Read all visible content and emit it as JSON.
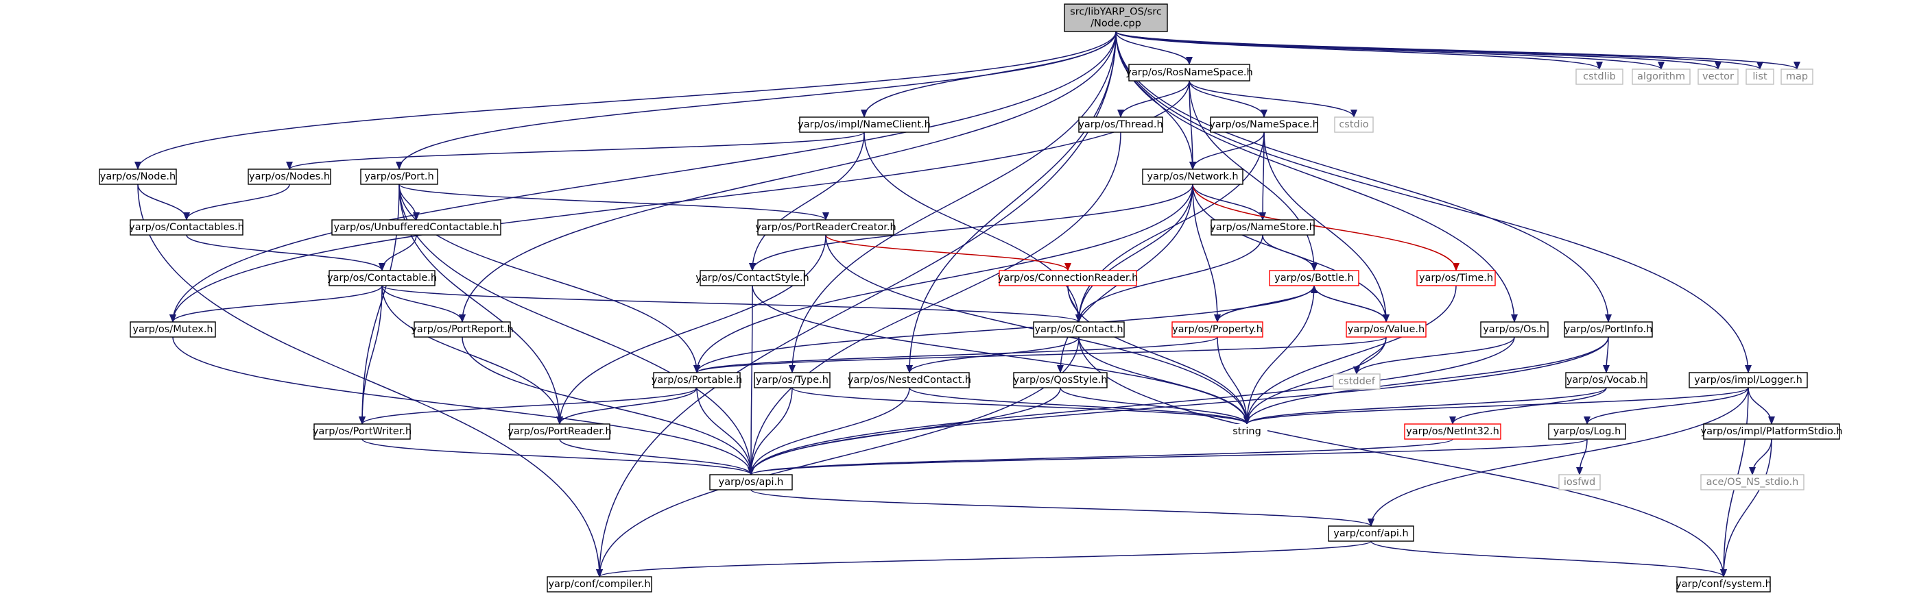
{
  "colors": {
    "edge": "#191970",
    "edge_red": "#c00000",
    "box_border": "#000000",
    "box_border_red": "#ff0000",
    "box_border_system": "#bfbfbf",
    "root_fill": "#bfbfbf",
    "text": "#000000",
    "text_system": "#808080"
  },
  "nodes": [
    {
      "id": "root",
      "lines": [
        "src/libYARP_OS/src",
        "/Node.cpp"
      ],
      "kind": "root"
    },
    {
      "id": "rosnamespace",
      "lines": [
        "yarp/os/RosNameSpace.h"
      ],
      "kind": "normal"
    },
    {
      "id": "cstdlib",
      "lines": [
        "cstdlib"
      ],
      "kind": "system"
    },
    {
      "id": "algorithm",
      "lines": [
        "algorithm"
      ],
      "kind": "system"
    },
    {
      "id": "vector",
      "lines": [
        "vector"
      ],
      "kind": "system"
    },
    {
      "id": "list",
      "lines": [
        "list"
      ],
      "kind": "system"
    },
    {
      "id": "map",
      "lines": [
        "map"
      ],
      "kind": "system"
    },
    {
      "id": "nameclient",
      "lines": [
        "yarp/os/impl/NameClient.h"
      ],
      "kind": "normal"
    },
    {
      "id": "thread",
      "lines": [
        "yarp/os/Thread.h"
      ],
      "kind": "normal"
    },
    {
      "id": "namespace",
      "lines": [
        "yarp/os/NameSpace.h"
      ],
      "kind": "normal"
    },
    {
      "id": "cstdio",
      "lines": [
        "cstdio"
      ],
      "kind": "system"
    },
    {
      "id": "node",
      "lines": [
        "yarp/os/Node.h"
      ],
      "kind": "normal"
    },
    {
      "id": "nodes",
      "lines": [
        "yarp/os/Nodes.h"
      ],
      "kind": "normal"
    },
    {
      "id": "port",
      "lines": [
        "yarp/os/Port.h"
      ],
      "kind": "normal"
    },
    {
      "id": "network",
      "lines": [
        "yarp/os/Network.h"
      ],
      "kind": "normal"
    },
    {
      "id": "contactables",
      "lines": [
        "yarp/os/Contactables.h"
      ],
      "kind": "normal"
    },
    {
      "id": "unbuffered",
      "lines": [
        "yarp/os/UnbufferedContactable.h"
      ],
      "kind": "normal"
    },
    {
      "id": "portreadercreator",
      "lines": [
        "yarp/os/PortReaderCreator.h"
      ],
      "kind": "normal"
    },
    {
      "id": "namestore",
      "lines": [
        "yarp/os/NameStore.h"
      ],
      "kind": "normal"
    },
    {
      "id": "contactable",
      "lines": [
        "yarp/os/Contactable.h"
      ],
      "kind": "normal"
    },
    {
      "id": "contactstyle",
      "lines": [
        "yarp/os/ContactStyle.h"
      ],
      "kind": "normal"
    },
    {
      "id": "connectionreader",
      "lines": [
        "yarp/os/ConnectionReader.h"
      ],
      "kind": "red"
    },
    {
      "id": "bottle",
      "lines": [
        "yarp/os/Bottle.h"
      ],
      "kind": "red"
    },
    {
      "id": "time",
      "lines": [
        "yarp/os/Time.h"
      ],
      "kind": "red"
    },
    {
      "id": "mutex",
      "lines": [
        "yarp/os/Mutex.h"
      ],
      "kind": "normal"
    },
    {
      "id": "portreport",
      "lines": [
        "yarp/os/PortReport.h"
      ],
      "kind": "normal"
    },
    {
      "id": "contact",
      "lines": [
        "yarp/os/Contact.h"
      ],
      "kind": "normal"
    },
    {
      "id": "property",
      "lines": [
        "yarp/os/Property.h"
      ],
      "kind": "red"
    },
    {
      "id": "value",
      "lines": [
        "yarp/os/Value.h"
      ],
      "kind": "red"
    },
    {
      "id": "os",
      "lines": [
        "yarp/os/Os.h"
      ],
      "kind": "normal"
    },
    {
      "id": "portinfo",
      "lines": [
        "yarp/os/PortInfo.h"
      ],
      "kind": "normal"
    },
    {
      "id": "portable",
      "lines": [
        "yarp/os/Portable.h"
      ],
      "kind": "normal"
    },
    {
      "id": "type",
      "lines": [
        "yarp/os/Type.h"
      ],
      "kind": "normal"
    },
    {
      "id": "nestedcontact",
      "lines": [
        "yarp/os/NestedContact.h"
      ],
      "kind": "normal"
    },
    {
      "id": "qosstyle",
      "lines": [
        "yarp/os/QosStyle.h"
      ],
      "kind": "normal"
    },
    {
      "id": "cstddef",
      "lines": [
        "cstddef"
      ],
      "kind": "system"
    },
    {
      "id": "vocab",
      "lines": [
        "yarp/os/Vocab.h"
      ],
      "kind": "normal"
    },
    {
      "id": "logger",
      "lines": [
        "yarp/os/impl/Logger.h"
      ],
      "kind": "normal"
    },
    {
      "id": "portwriter",
      "lines": [
        "yarp/os/PortWriter.h"
      ],
      "kind": "normal"
    },
    {
      "id": "portreader",
      "lines": [
        "yarp/os/PortReader.h"
      ],
      "kind": "normal"
    },
    {
      "id": "string",
      "lines": [
        "string"
      ],
      "kind": "plain"
    },
    {
      "id": "netint32",
      "lines": [
        "yarp/os/NetInt32.h"
      ],
      "kind": "red"
    },
    {
      "id": "log",
      "lines": [
        "yarp/os/Log.h"
      ],
      "kind": "normal"
    },
    {
      "id": "platformstdio",
      "lines": [
        "yarp/os/impl/PlatformStdio.h"
      ],
      "kind": "normal"
    },
    {
      "id": "api",
      "lines": [
        "yarp/os/api.h"
      ],
      "kind": "normal"
    },
    {
      "id": "iosfwd",
      "lines": [
        "iosfwd"
      ],
      "kind": "system"
    },
    {
      "id": "ace_stdio",
      "lines": [
        "ace/OS_NS_stdio.h"
      ],
      "kind": "system"
    },
    {
      "id": "confapi",
      "lines": [
        "yarp/conf/api.h"
      ],
      "kind": "normal"
    },
    {
      "id": "compiler",
      "lines": [
        "yarp/conf/compiler.h"
      ],
      "kind": "normal"
    },
    {
      "id": "system",
      "lines": [
        "yarp/conf/system.h"
      ],
      "kind": "normal"
    }
  ],
  "edges": [
    {
      "from": "root",
      "to": "rosnamespace"
    },
    {
      "from": "root",
      "to": "cstdlib"
    },
    {
      "from": "root",
      "to": "algorithm"
    },
    {
      "from": "root",
      "to": "vector"
    },
    {
      "from": "root",
      "to": "list"
    },
    {
      "from": "root",
      "to": "map"
    },
    {
      "from": "root",
      "to": "nameclient"
    },
    {
      "from": "root",
      "to": "node"
    },
    {
      "from": "root",
      "to": "port"
    },
    {
      "from": "root",
      "to": "network"
    },
    {
      "from": "root",
      "to": "mutex"
    },
    {
      "from": "root",
      "to": "portreport"
    },
    {
      "from": "root",
      "to": "type"
    },
    {
      "from": "root",
      "to": "nestedcontact"
    },
    {
      "from": "root",
      "to": "os"
    },
    {
      "from": "root",
      "to": "portinfo"
    },
    {
      "from": "root",
      "to": "logger"
    },
    {
      "from": "root",
      "to": "compiler"
    },
    {
      "from": "rosnamespace",
      "to": "thread"
    },
    {
      "from": "rosnamespace",
      "to": "namespace"
    },
    {
      "from": "rosnamespace",
      "to": "cstdio"
    },
    {
      "from": "rosnamespace",
      "to": "network"
    },
    {
      "from": "rosnamespace",
      "to": "bottle"
    },
    {
      "from": "rosnamespace",
      "to": "mutex"
    },
    {
      "from": "nameclient",
      "to": "nodes"
    },
    {
      "from": "nameclient",
      "to": "contactstyle"
    },
    {
      "from": "nameclient",
      "to": "contact"
    },
    {
      "from": "thread",
      "to": "api"
    },
    {
      "from": "namespace",
      "to": "network"
    },
    {
      "from": "namespace",
      "to": "namestore"
    },
    {
      "from": "namespace",
      "to": "contact"
    },
    {
      "from": "namespace",
      "to": "value"
    },
    {
      "from": "node",
      "to": "contactables"
    },
    {
      "from": "node",
      "to": "compiler"
    },
    {
      "from": "nodes",
      "to": "contactables"
    },
    {
      "from": "port",
      "to": "unbuffered"
    },
    {
      "from": "port",
      "to": "portreadercreator"
    },
    {
      "from": "port",
      "to": "portable"
    },
    {
      "from": "port",
      "to": "portwriter"
    },
    {
      "from": "port",
      "to": "portreader"
    },
    {
      "from": "port",
      "to": "api"
    },
    {
      "from": "network",
      "to": "contactstyle"
    },
    {
      "from": "network",
      "to": "namestore"
    },
    {
      "from": "network",
      "to": "contact"
    },
    {
      "from": "network",
      "to": "property"
    },
    {
      "from": "network",
      "to": "value"
    },
    {
      "from": "network",
      "to": "time",
      "red": true
    },
    {
      "from": "network",
      "to": "portable"
    },
    {
      "from": "network",
      "to": "qosstyle"
    },
    {
      "from": "contactables",
      "to": "contactable"
    },
    {
      "from": "unbuffered",
      "to": "contactable"
    },
    {
      "from": "portreadercreator",
      "to": "connectionreader",
      "red": true
    },
    {
      "from": "portreadercreator",
      "to": "portreader"
    },
    {
      "from": "portreadercreator",
      "to": "string"
    },
    {
      "from": "namestore",
      "to": "contact"
    },
    {
      "from": "namestore",
      "to": "bottle"
    },
    {
      "from": "contactable",
      "to": "mutex"
    },
    {
      "from": "contactable",
      "to": "portreport"
    },
    {
      "from": "contactable",
      "to": "contact"
    },
    {
      "from": "contactable",
      "to": "portwriter"
    },
    {
      "from": "contactable",
      "to": "portreader"
    },
    {
      "from": "contactstyle",
      "to": "api"
    },
    {
      "from": "contactstyle",
      "to": "string"
    },
    {
      "from": "connectionreader",
      "to": "contact"
    },
    {
      "from": "connectionreader",
      "to": "string"
    },
    {
      "from": "bottle",
      "to": "property"
    },
    {
      "from": "bottle",
      "to": "value"
    },
    {
      "from": "bottle",
      "to": "portable"
    },
    {
      "from": "bottle",
      "to": "string"
    },
    {
      "from": "property",
      "to": "bottle"
    },
    {
      "from": "property",
      "to": "portable"
    },
    {
      "from": "property",
      "to": "string"
    },
    {
      "from": "value",
      "to": "bottle"
    },
    {
      "from": "value",
      "to": "portable"
    },
    {
      "from": "value",
      "to": "cstddef"
    },
    {
      "from": "value",
      "to": "string"
    },
    {
      "from": "time",
      "to": "string"
    },
    {
      "from": "mutex",
      "to": "api"
    },
    {
      "from": "portreport",
      "to": "api"
    },
    {
      "from": "contact",
      "to": "nestedcontact"
    },
    {
      "from": "contact",
      "to": "string"
    },
    {
      "from": "contact",
      "to": "system"
    },
    {
      "from": "contact",
      "to": "compiler"
    },
    {
      "from": "os",
      "to": "cstddef"
    },
    {
      "from": "os",
      "to": "api"
    },
    {
      "from": "portinfo",
      "to": "vocab"
    },
    {
      "from": "portinfo",
      "to": "string"
    },
    {
      "from": "portinfo",
      "to": "api"
    },
    {
      "from": "portable",
      "to": "portwriter"
    },
    {
      "from": "portable",
      "to": "portreader"
    },
    {
      "from": "portable",
      "to": "api"
    },
    {
      "from": "type",
      "to": "api"
    },
    {
      "from": "type",
      "to": "string"
    },
    {
      "from": "nestedcontact",
      "to": "api"
    },
    {
      "from": "nestedcontact",
      "to": "string"
    },
    {
      "from": "qosstyle",
      "to": "api"
    },
    {
      "from": "qosstyle",
      "to": "string"
    },
    {
      "from": "vocab",
      "to": "netint32"
    },
    {
      "from": "vocab",
      "to": "string"
    },
    {
      "from": "logger",
      "to": "log"
    },
    {
      "from": "logger",
      "to": "platformstdio"
    },
    {
      "from": "logger",
      "to": "string"
    },
    {
      "from": "logger",
      "to": "confapi"
    },
    {
      "from": "logger",
      "to": "system"
    },
    {
      "from": "portwriter",
      "to": "api"
    },
    {
      "from": "portreader",
      "to": "api"
    },
    {
      "from": "netint32",
      "to": "api"
    },
    {
      "from": "log",
      "to": "api"
    },
    {
      "from": "log",
      "to": "iosfwd"
    },
    {
      "from": "platformstdio",
      "to": "ace_stdio"
    },
    {
      "from": "platformstdio",
      "to": "system"
    },
    {
      "from": "api",
      "to": "confapi"
    },
    {
      "from": "confapi",
      "to": "compiler"
    },
    {
      "from": "confapi",
      "to": "system"
    }
  ]
}
